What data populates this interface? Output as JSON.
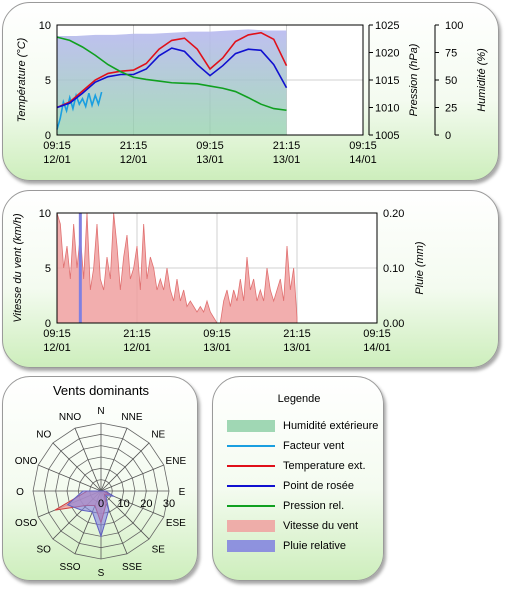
{
  "colors": {
    "humidity": "#8fd0a8",
    "wind_chill": "#1a9fe0",
    "temperature": "#e0101a",
    "dew_point": "#1010d0",
    "pressure": "#10a020",
    "wind_speed": "#f0a0a0",
    "rain": "#8080e0",
    "plot_bg": "#ffffff",
    "grid": "#d0d0d0"
  },
  "chart_data": [
    {
      "type": "line",
      "x_ticks": [
        "09:15|12/01",
        "21:15|12/01",
        "09:15|13/01",
        "21:15|13/01",
        "09:15|14/01"
      ],
      "x_hours": [
        0,
        12,
        24,
        36,
        48
      ],
      "ylabel": "Température (°C)",
      "ylim": [
        0,
        10
      ],
      "yticks": [
        0,
        5,
        10
      ],
      "y2label": "Pression (hPa)",
      "y2lim": [
        1005,
        1025
      ],
      "y2ticks": [
        1005,
        1010,
        1015,
        1020,
        1025
      ],
      "y3label": "Humidité (%)",
      "y3lim": [
        0,
        100
      ],
      "y3ticks": [
        0,
        25,
        50,
        75,
        100
      ],
      "grid": true,
      "series": [
        {
          "name": "Humidité extérieure",
          "key": "humidity",
          "axis": "y3",
          "x": [
            0,
            3,
            6,
            9,
            12,
            15,
            18,
            21,
            24,
            27,
            30,
            33,
            36
          ],
          "y": [
            90,
            90,
            91,
            91,
            92,
            92,
            93,
            94,
            94,
            95,
            96,
            95,
            95
          ]
        },
        {
          "name": "Facteur vent",
          "key": "wind_chill",
          "axis": "y",
          "x": [
            0,
            0.5,
            1,
            1.5,
            2,
            2.5,
            3,
            3.5,
            4,
            4.5,
            5,
            5.5,
            6,
            6.5,
            7
          ],
          "y": [
            0.5,
            1.5,
            3.0,
            2.2,
            3.4,
            2.4,
            3.6,
            2.8,
            3.3,
            2.6,
            3.8,
            2.7,
            3.6,
            2.8,
            3.9
          ]
        },
        {
          "name": "Temperature ext.",
          "key": "temperature",
          "axis": "y",
          "x": [
            0,
            2,
            4,
            6,
            8,
            10,
            12,
            14,
            16,
            18,
            20,
            22,
            24,
            26,
            28,
            30,
            32,
            34,
            36
          ],
          "y": [
            2.5,
            3.0,
            4.0,
            5.0,
            5.6,
            5.8,
            5.9,
            6.5,
            7.8,
            8.6,
            8.8,
            7.8,
            6.0,
            7.0,
            8.5,
            9.1,
            9.3,
            8.7,
            6.3
          ]
        },
        {
          "name": "Point de rosée",
          "key": "dew_point",
          "axis": "y",
          "x": [
            0,
            2,
            4,
            6,
            8,
            10,
            12,
            14,
            16,
            18,
            20,
            22,
            24,
            26,
            28,
            30,
            32,
            34,
            36
          ],
          "y": [
            2.5,
            2.9,
            3.8,
            4.8,
            5.3,
            5.5,
            5.5,
            6.0,
            7.2,
            7.9,
            7.6,
            6.4,
            5.4,
            6.3,
            7.4,
            7.8,
            7.7,
            6.4,
            4.3
          ]
        },
        {
          "name": "Pression rel.",
          "key": "pressure",
          "axis": "y2",
          "x": [
            0,
            2,
            4,
            6,
            8,
            10,
            12,
            14,
            16,
            18,
            20,
            22,
            24,
            26,
            28,
            30,
            32,
            34,
            36
          ],
          "y": [
            1022.8,
            1022.2,
            1021.0,
            1019.5,
            1017.8,
            1016.5,
            1015.5,
            1015.1,
            1014.8,
            1014.5,
            1014.4,
            1014.3,
            1013.9,
            1013.5,
            1012.9,
            1011.8,
            1010.6,
            1009.8,
            1009.5
          ]
        }
      ]
    },
    {
      "type": "bar",
      "x_ticks": [
        "09:15|12/01",
        "21:15|12/01",
        "09:15|13/01",
        "21:15|13/01",
        "09:15|14/01"
      ],
      "x_hours": [
        0,
        12,
        24,
        36,
        48
      ],
      "ylabel": "Vitesse du vent (km/h)",
      "ylim": [
        0,
        10
      ],
      "yticks": [
        0,
        5,
        10
      ],
      "y2label": "Pluie (mm)",
      "y2lim": [
        0,
        0.2
      ],
      "y2ticks": [
        "0.00",
        "0.10",
        "0.20"
      ],
      "grid": true,
      "series": [
        {
          "name": "Vitesse du vent",
          "key": "wind_speed",
          "x": [
            0,
            0.5,
            1,
            1.5,
            2,
            2.5,
            3,
            3.5,
            4,
            4.5,
            5,
            5.5,
            6,
            6.5,
            7,
            7.5,
            8,
            8.5,
            9,
            9.5,
            10,
            10.5,
            11,
            11.5,
            12,
            12.5,
            13,
            13.5,
            14,
            14.5,
            15,
            15.5,
            16,
            16.5,
            17,
            17.5,
            18,
            18.5,
            19,
            19.5,
            20,
            20.5,
            21,
            21.5,
            22,
            22.5,
            23,
            23.5,
            24,
            24.5,
            25,
            25.5,
            26,
            26.5,
            27,
            27.5,
            28,
            28.5,
            29,
            29.5,
            30,
            30.5,
            31,
            31.5,
            32,
            32.5,
            33,
            33.5,
            34,
            34.5,
            35,
            35.5,
            36
          ],
          "y": [
            10,
            9,
            5,
            7,
            4,
            9,
            5,
            8,
            4,
            10,
            3,
            5,
            9,
            4,
            3,
            6,
            4,
            10,
            7,
            3,
            6,
            8,
            4,
            5,
            7,
            3,
            9,
            4,
            6,
            5,
            3,
            4,
            3,
            5,
            3,
            2,
            4,
            2,
            3,
            1.5,
            2,
            1.5,
            1,
            1.5,
            1,
            2,
            1,
            0.5,
            0,
            0,
            2,
            3,
            1.5,
            3,
            2,
            4,
            2,
            6,
            3,
            4,
            2,
            3,
            2,
            5,
            3,
            2,
            3,
            4,
            2,
            7,
            3,
            5,
            0.5
          ]
        },
        {
          "name": "Pluie relative",
          "key": "rain",
          "x": [
            3.5
          ],
          "y": [
            0.2
          ]
        }
      ]
    },
    {
      "type": "radar",
      "title": "Vents dominants",
      "directions": [
        "N",
        "NNE",
        "NE",
        "ENE",
        "E",
        "ESE",
        "SE",
        "SSE",
        "S",
        "SSO",
        "SO",
        "OSO",
        "O",
        "ONO",
        "NO",
        "NNO"
      ],
      "rlim": [
        0,
        30
      ],
      "rticks": [
        "0",
        "10",
        "20",
        "30"
      ],
      "series": [
        {
          "name": "Vitesse du vent",
          "key": "wind_speed",
          "values": [
            0,
            0,
            0,
            0,
            1,
            4,
            2,
            6,
            14,
            7,
            9,
            22,
            6,
            0,
            0,
            0
          ]
        },
        {
          "name": "Pluie relative",
          "key": "rain",
          "values": [
            0,
            0,
            0,
            0,
            2,
            6,
            3,
            9,
            20,
            10,
            12,
            16,
            8,
            0,
            0,
            0
          ]
        }
      ]
    }
  ],
  "legend": {
    "title": "Legende",
    "items": [
      {
        "label": "Humidité extérieure",
        "key": "humidity",
        "style": "box"
      },
      {
        "label": "Facteur vent",
        "key": "wind_chill",
        "style": "line"
      },
      {
        "label": "Temperature ext.",
        "key": "temperature",
        "style": "line"
      },
      {
        "label": "Point de rosée",
        "key": "dew_point",
        "style": "line"
      },
      {
        "label": "Pression rel.",
        "key": "pressure",
        "style": "line"
      },
      {
        "label": "Vitesse du vent",
        "key": "wind_speed",
        "style": "box"
      },
      {
        "label": "Pluie relative",
        "key": "rain",
        "style": "box"
      }
    ]
  }
}
